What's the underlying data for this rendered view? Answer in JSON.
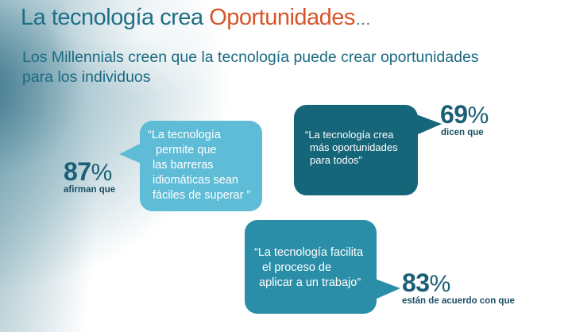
{
  "header": {
    "title_main": "La tecnología crea",
    "title_accent": "Oportunidades",
    "title_ellipsis": "…",
    "subtitle_line1": "Los Millennials creen que la tecnología puede crear oportunidades",
    "subtitle_line2": "para los individuos"
  },
  "stats": [
    {
      "number": "87",
      "percent_sign": "%",
      "caption": "afirman que",
      "quote_lines": [
        "“La tecnología",
        "permite que",
        "las barreras",
        "idiomáticas sean",
        "fáciles de superar ”"
      ]
    },
    {
      "number": "69",
      "percent_sign": "%",
      "caption": "dicen que",
      "quote_lines": [
        "“La tecnología crea",
        "más oportunidades",
        "para todos”"
      ]
    },
    {
      "number": "83",
      "percent_sign": "%",
      "caption": "están de acuerdo con que",
      "quote_lines": [
        "“La tecnología facilita",
        "el proceso de",
        "aplicar a un trabajo”"
      ]
    }
  ],
  "colors": {
    "title": "#1f6f86",
    "accent": "#d6552a",
    "bubble_light": "#5fbcd6",
    "bubble_dark": "#16667a",
    "bubble_mid": "#2b8ea8"
  }
}
